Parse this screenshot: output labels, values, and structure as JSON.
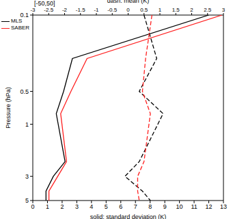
{
  "chart_data": {
    "type": "line",
    "annotation": "[-50,50]",
    "x2label": "dash: mean (K)",
    "xlabel": "solid: standard deviation (K)",
    "ylabel": "Pressure (hPa)",
    "log": "y",
    "y": [
      0.1,
      0.25,
      0.5,
      0.8,
      2.2,
      3,
      4.1,
      5
    ],
    "ylim": [
      0.1,
      5
    ],
    "yticks": [
      0.1,
      0.5,
      1,
      3,
      5
    ],
    "xlim": [
      0,
      13
    ],
    "xticks": [
      0,
      1,
      2,
      3,
      4,
      5,
      6,
      7,
      8,
      9,
      10,
      11,
      12,
      13
    ],
    "x2lim": [
      -3,
      3
    ],
    "x2ticks": [
      -3,
      -2.5,
      -2,
      -1.5,
      -1,
      -0.5,
      0,
      0.5,
      1,
      1.5,
      2,
      2.5,
      3
    ],
    "legend": "upper left",
    "series": [
      {
        "name": "MLS",
        "color": "#000000",
        "std": [
          12.0,
          2.7,
          2.1,
          1.6,
          2.2,
          1.4,
          0.9,
          0.9
        ],
        "mean": [
          0.5,
          0.9,
          0.35,
          1.1,
          0.35,
          -0.1,
          0.45,
          0.7
        ]
      },
      {
        "name": "SABER",
        "color": "#ff2020",
        "std": [
          12.9,
          3.7,
          2.6,
          1.9,
          2.3,
          1.7,
          1.1,
          1.1
        ],
        "mean": [
          0.75,
          0.55,
          0.45,
          0.7,
          0.5,
          0.3,
          0.3,
          0.35
        ]
      }
    ]
  }
}
